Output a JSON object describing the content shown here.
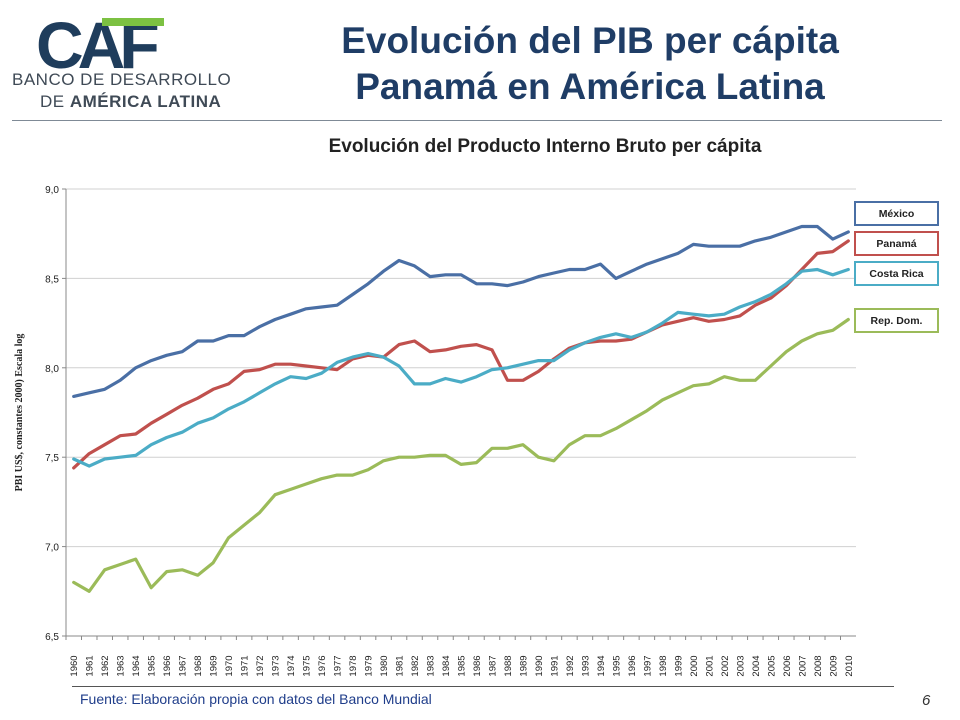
{
  "logo": {
    "mark": "CAF",
    "line1": "BANCO DE DESARROLLO",
    "line2_a": "DE ",
    "line2_b": "AMÉRICA LATINA"
  },
  "slide": {
    "title_line1": "Evolución del PIB per cápita",
    "title_line2": "Panamá en América Latina",
    "source": "Fuente: Elaboración propia con datos del Banco Mundial",
    "page_number": "6"
  },
  "chart_data": {
    "type": "line",
    "title": "Evolución del Producto Interno Bruto per cápita",
    "ylabel": "PBI US$, constantes 2000) Escala log",
    "xlabel": "",
    "ylim": [
      6.5,
      9.0
    ],
    "yticks": [
      "6,5",
      "7,0",
      "7,5",
      "8,0",
      "8,5",
      "9,0"
    ],
    "grid": true,
    "legend": "right",
    "categories": [
      "1960",
      "1961",
      "1962",
      "1963",
      "1964",
      "1965",
      "1966",
      "1967",
      "1968",
      "1969",
      "1970",
      "1971",
      "1972",
      "1973",
      "1974",
      "1975",
      "1976",
      "1977",
      "1978",
      "1979",
      "1980",
      "1981",
      "1982",
      "1983",
      "1984",
      "1985",
      "1986",
      "1987",
      "1988",
      "1989",
      "1990",
      "1991",
      "1992",
      "1993",
      "1994",
      "1995",
      "1996",
      "1997",
      "1998",
      "1999",
      "2000",
      "2001",
      "2002",
      "2003",
      "2004",
      "2005",
      "2006",
      "2007",
      "2008",
      "2009",
      "2010"
    ],
    "series": [
      {
        "name": "México",
        "color": "#4a6fa5",
        "values": [
          7.84,
          7.86,
          7.88,
          7.93,
          8.0,
          8.04,
          8.07,
          8.09,
          8.15,
          8.15,
          8.18,
          8.18,
          8.23,
          8.27,
          8.3,
          8.33,
          8.34,
          8.35,
          8.41,
          8.47,
          8.54,
          8.6,
          8.57,
          8.51,
          8.52,
          8.52,
          8.47,
          8.47,
          8.46,
          8.48,
          8.51,
          8.53,
          8.55,
          8.55,
          8.58,
          8.5,
          8.54,
          8.58,
          8.61,
          8.64,
          8.69,
          8.68,
          8.68,
          8.68,
          8.71,
          8.73,
          8.76,
          8.79,
          8.79,
          8.72,
          8.76
        ]
      },
      {
        "name": "Panamá",
        "color": "#c0504d",
        "values": [
          7.44,
          7.52,
          7.57,
          7.62,
          7.63,
          7.69,
          7.74,
          7.79,
          7.83,
          7.88,
          7.91,
          7.98,
          7.99,
          8.02,
          8.02,
          8.01,
          8.0,
          7.99,
          8.05,
          8.07,
          8.06,
          8.13,
          8.15,
          8.09,
          8.1,
          8.12,
          8.13,
          8.1,
          7.93,
          7.93,
          7.98,
          8.05,
          8.11,
          8.14,
          8.15,
          8.15,
          8.16,
          8.2,
          8.24,
          8.26,
          8.28,
          8.26,
          8.27,
          8.29,
          8.35,
          8.39,
          8.46,
          8.55,
          8.64,
          8.65,
          8.71
        ]
      },
      {
        "name": "Costa Rica",
        "color": "#4bacc6",
        "values": [
          7.49,
          7.45,
          7.49,
          7.5,
          7.51,
          7.57,
          7.61,
          7.64,
          7.69,
          7.72,
          7.77,
          7.81,
          7.86,
          7.91,
          7.95,
          7.94,
          7.97,
          8.03,
          8.06,
          8.08,
          8.06,
          8.01,
          7.91,
          7.91,
          7.94,
          7.92,
          7.95,
          7.99,
          8.0,
          8.02,
          8.04,
          8.04,
          8.1,
          8.14,
          8.17,
          8.19,
          8.17,
          8.2,
          8.25,
          8.31,
          8.3,
          8.29,
          8.3,
          8.34,
          8.37,
          8.41,
          8.47,
          8.54,
          8.55,
          8.52,
          8.55
        ]
      },
      {
        "name": "Rep. Dom.",
        "color": "#9bbb59",
        "values": [
          6.8,
          6.75,
          6.87,
          6.9,
          6.93,
          6.77,
          6.86,
          6.87,
          6.84,
          6.91,
          7.05,
          7.12,
          7.19,
          7.29,
          7.32,
          7.35,
          7.38,
          7.4,
          7.4,
          7.43,
          7.48,
          7.5,
          7.5,
          7.51,
          7.51,
          7.46,
          7.47,
          7.55,
          7.55,
          7.57,
          7.5,
          7.48,
          7.57,
          7.62,
          7.62,
          7.66,
          7.71,
          7.76,
          7.82,
          7.86,
          7.9,
          7.91,
          7.95,
          7.93,
          7.93,
          8.01,
          8.09,
          8.15,
          8.19,
          8.21,
          8.27
        ]
      }
    ]
  }
}
